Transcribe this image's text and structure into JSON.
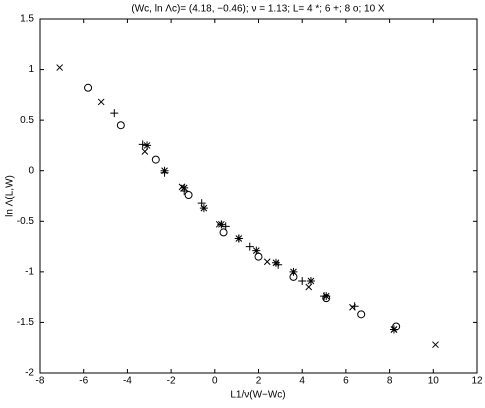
{
  "chart_data": {
    "type": "scatter",
    "title": "(Wc, ln Λc)= (4.18, −0.46); ν = 1.13; L= 4 *; 6 +; 8 o; 10 X",
    "xlabel": "L1/ν(W−Wc)",
    "ylabel": "ln Λ(L,W)",
    "xlim": [
      -8,
      12
    ],
    "xticks": [
      -8,
      -6,
      -4,
      -2,
      0,
      2,
      4,
      6,
      8,
      10,
      12
    ],
    "ylim": [
      -2,
      1.5
    ],
    "yticks": [
      -2,
      -1.5,
      -1,
      -0.5,
      0,
      0.5,
      1,
      1.5
    ],
    "grid": false,
    "series": [
      {
        "marker": "x",
        "color": "#000000",
        "x": [
          -7.1,
          -5.2,
          -3.2,
          -1.5,
          0.2,
          2.4,
          4.3,
          6.3,
          8.2,
          10.1
        ],
        "values": [
          1.02,
          0.68,
          0.19,
          -0.16,
          -0.53,
          -0.9,
          -1.15,
          -1.35,
          -1.57,
          -1.72
        ]
      },
      {
        "marker": "o",
        "color": "#000000",
        "x": [
          -5.8,
          -4.3,
          -2.7,
          -1.2,
          0.4,
          2.0,
          3.6,
          5.1,
          6.7,
          8.3
        ],
        "values": [
          0.82,
          0.45,
          0.11,
          -0.24,
          -0.61,
          -0.85,
          -1.05,
          -1.26,
          -1.42,
          -1.54
        ]
      },
      {
        "marker": "+",
        "color": "#000000",
        "x": [
          -4.6,
          -3.3,
          -2.3,
          -1.4,
          -0.6,
          0.5,
          1.1,
          1.6,
          2.9,
          4.0,
          5.0,
          6.4
        ],
        "values": [
          0.57,
          0.26,
          -0.02,
          -0.2,
          -0.32,
          -0.55,
          -0.67,
          -0.75,
          -0.93,
          -1.09,
          -1.24,
          -1.34
        ]
      },
      {
        "marker": "*",
        "color": "#000000",
        "x": [
          -3.1,
          -2.3,
          -1.4,
          -0.5,
          0.3,
          1.1,
          1.9,
          2.8,
          3.6,
          4.4,
          5.1,
          8.2
        ],
        "values": [
          0.25,
          0.0,
          -0.17,
          -0.37,
          -0.53,
          -0.67,
          -0.79,
          -0.91,
          -1.0,
          -1.09,
          -1.24,
          -1.57
        ]
      }
    ]
  }
}
